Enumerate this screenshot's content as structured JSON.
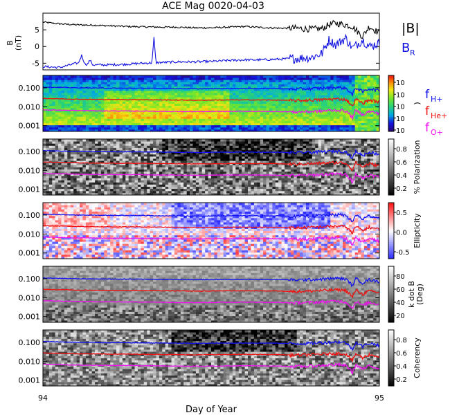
{
  "title": "ACE Mag 0020-04-03",
  "xlabel": "Day of Year",
  "x_ticks": [
    "94",
    "95"
  ],
  "x_range": [
    94,
    95
  ],
  "colors": {
    "total_field": "#000000",
    "radial_field": "#1010e0",
    "h_line": "#1010f0",
    "he_line": "#f01010",
    "o_line": "#f010f0"
  },
  "panel_b": {
    "ylabel_main": "B",
    "ylabel_units": "(nT)",
    "y_ticks": [
      "5",
      "0",
      "-5"
    ],
    "ylim": [
      -7,
      10
    ],
    "legend_total": "|B|",
    "legend_radial": "B",
    "legend_radial_sub": "R"
  },
  "freq_ticks": [
    "0.100",
    "0.010",
    "0.001"
  ],
  "freq_ylim": [
    0.0005,
    0.45
  ],
  "panels": [
    {
      "id": "power",
      "colorbar_ticks": [
        "10",
        "10",
        "10",
        "10",
        "10"
      ],
      "colorbar_label": ")",
      "colormap": "rainbow"
    },
    {
      "id": "polarization",
      "colorbar_ticks": [
        "0.8",
        "0.6",
        "0.4",
        "0.2"
      ],
      "colorbar_label": "% Polarization",
      "colormap": "gray"
    },
    {
      "id": "ellipticity",
      "colorbar_ticks": [
        "0.5",
        "0.0",
        "-0.5"
      ],
      "colorbar_label": "Ellipticity",
      "colormap": "bwr"
    },
    {
      "id": "kdotb",
      "colorbar_ticks": [
        "80",
        "60",
        "40",
        "20"
      ],
      "colorbar_label": "k dot B",
      "colorbar_label2": "(Deg)",
      "colormap": "gray"
    },
    {
      "id": "coherency",
      "colorbar_ticks": [
        "0.8",
        "0.6",
        "0.4",
        "0.2"
      ],
      "colorbar_label": "Coherency",
      "colormap": "gray"
    }
  ],
  "gyro_legend": [
    {
      "f": "f",
      "sub": "H+"
    },
    {
      "f": "f",
      "sub": "He+"
    },
    {
      "f": "f",
      "sub": "O+"
    }
  ],
  "chart_data": {
    "type": "line",
    "title": "ACE Mag 0020-04-03",
    "xlabel": "Day of Year",
    "xlim": [
      94,
      95
    ],
    "panels": [
      {
        "name": "B",
        "ylim": [
          -7,
          10
        ],
        "x": [
          94.0,
          94.05,
          94.1,
          94.15,
          94.2,
          94.25,
          94.3,
          94.35,
          94.4,
          94.45,
          94.5,
          94.55,
          94.6,
          94.65,
          94.7,
          94.75,
          94.8,
          94.83,
          94.85,
          94.87,
          94.9,
          94.92,
          94.95,
          94.97,
          95.0
        ],
        "series": [
          {
            "name": "|B|",
            "values": [
              7.3,
              6.8,
              6.5,
              6.4,
              6.2,
              6.0,
              5.9,
              5.8,
              5.8,
              5.6,
              5.6,
              5.8,
              6.0,
              5.7,
              5.5,
              5.5,
              5.2,
              5.4,
              6.5,
              7.0,
              6.5,
              6.0,
              3.0,
              6.0,
              4.0
            ]
          },
          {
            "name": "B",
            "values": [
              -6.0,
              -6.3,
              -5.0,
              -5.5,
              -5.5,
              -5.3,
              -5.0,
              -4.8,
              -4.6,
              -4.6,
              -4.5,
              -4.2,
              -4.0,
              -4.0,
              -3.8,
              -3.6,
              -3.2,
              -2.0,
              2.0,
              0.5,
              2.5,
              -0.5,
              2.0,
              0.0,
              1.0
            ]
          }
        ]
      },
      {
        "name": "gyrofrequency",
        "ylim": [
          0.0005,
          0.45
        ],
        "x": [
          94.0,
          94.1,
          94.2,
          94.3,
          94.4,
          94.47,
          94.5,
          94.6,
          94.7,
          94.75,
          94.8,
          94.85,
          94.88,
          94.9,
          94.92,
          94.93,
          94.95,
          94.97,
          95.0
        ],
        "series": [
          {
            "name": "H+",
            "values": [
              0.11,
              0.1,
              0.096,
              0.094,
              0.09,
              0.088,
              0.09,
              0.092,
              0.09,
              0.085,
              0.09,
              0.1,
              0.105,
              0.095,
              0.04,
              0.1,
              0.06,
              0.09,
              0.07
            ]
          },
          {
            "name": "He+",
            "values": [
              0.0275,
              0.025,
              0.024,
              0.0235,
              0.0225,
              0.022,
              0.0225,
              0.023,
              0.0225,
              0.0212,
              0.0225,
              0.025,
              0.026,
              0.024,
              0.01,
              0.025,
              0.015,
              0.0225,
              0.0175
            ]
          },
          {
            "name": "O+",
            "values": [
              0.0069,
              0.0063,
              0.006,
              0.0059,
              0.0056,
              0.0055,
              0.0056,
              0.0058,
              0.0056,
              0.0053,
              0.0056,
              0.0063,
              0.0066,
              0.0059,
              0.0025,
              0.0063,
              0.0038,
              0.0056,
              0.0044
            ]
          }
        ]
      }
    ]
  }
}
